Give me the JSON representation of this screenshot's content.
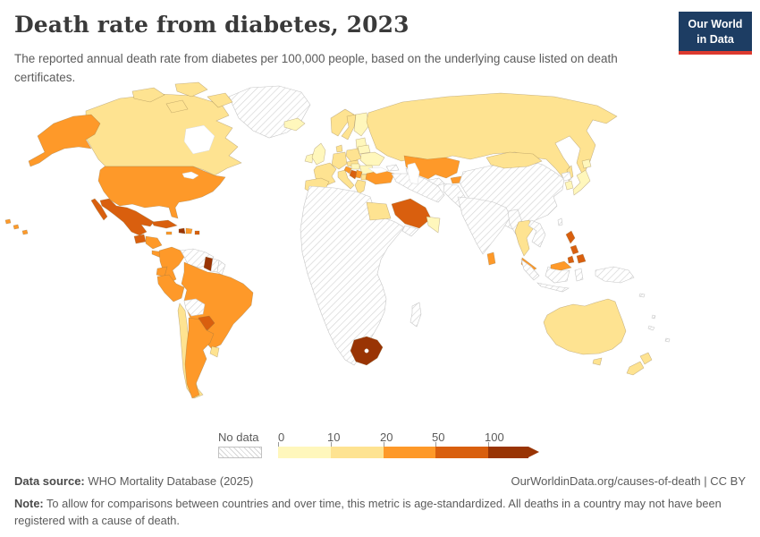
{
  "header": {
    "title": "Death rate from diabetes, 2023",
    "subtitle": "The reported annual death rate from diabetes per 100,000 people, based on the underlying cause listed on death certificates.",
    "logo": {
      "line1": "Our World",
      "line2": "in Data",
      "bg_color": "#1d3d63",
      "accent_color": "#dc3a2f"
    }
  },
  "legend": {
    "no_data_label": "No data",
    "ticks": [
      "0",
      "10",
      "20",
      "50",
      "100"
    ]
  },
  "footer": {
    "source_label": "Data source:",
    "source_rest": " WHO Mortality Database (2025)",
    "credit": "OurWorldinData.org/causes-of-death | CC BY",
    "note_label": "Note:",
    "note_rest": " To allow for comparisons between countries and over time, this metric is age-standardized. All deaths in a country may not have been registered with a cause of death."
  },
  "chart_data": {
    "type": "choropleth_map",
    "title": "Death rate from diabetes, 2023",
    "subtitle": "The reported annual death rate from diabetes per 100,000 people, based on the underlying cause listed on death certificates.",
    "unit": "deaths per 100,000 people",
    "year": 2023,
    "source": "WHO Mortality Database (2025)",
    "legend_position": "bottom",
    "legend_ticks": [
      0,
      10,
      20,
      50,
      100
    ],
    "color_scale": {
      "bins": [
        {
          "range": "0-10",
          "color": "#fff7bc"
        },
        {
          "range": "10-20",
          "color": "#fee391"
        },
        {
          "range": "20-50",
          "color": "#fe9929"
        },
        {
          "range": "50-100",
          "color": "#d95f0e"
        },
        {
          "range": "100+",
          "color": "#993404"
        }
      ],
      "no_data_style": "white with gray diagonal hatching"
    },
    "countries_by_range": {
      "0-10": [
        "Iceland",
        "Ireland",
        "United Kingdom",
        "Finland",
        "Baltic states",
        "Belarus",
        "Ukraine",
        "Romania",
        "Hungary",
        "Japan",
        "South Korea",
        "Oman"
      ],
      "10-20": [
        "Canada",
        "Chile",
        "Uruguay",
        "Norway",
        "Sweden",
        "Denmark",
        "Germany",
        "France",
        "Spain",
        "Portugal",
        "Italy",
        "Poland",
        "Czechia",
        "Slovakia",
        "Bulgaria",
        "Greece",
        "Russia",
        "Mongolia",
        "Egypt",
        "Thailand",
        "Australia",
        "New Zealand"
      ],
      "20-50": [
        "United States",
        "Honduras",
        "Nicaragua",
        "Costa Rica",
        "Panama",
        "Jamaica",
        "Dominican Republic",
        "Colombia",
        "Ecuador",
        "Peru",
        "Brazil",
        "Argentina",
        "Croatia",
        "Serbia",
        "Turkey",
        "Kazakhstan",
        "Kyrgyzstan",
        "Sri Lanka",
        "Malaysia"
      ],
      "50-100": [
        "Mexico",
        "Guatemala",
        "Cuba",
        "Puerto Rico",
        "Paraguay",
        "Bosnia and Herzegovina",
        "Saudi Arabia",
        "Philippines"
      ],
      "100+": [
        "Haiti",
        "Guyana",
        "South Africa"
      ],
      "no_data": [
        "Greenland",
        "Venezuela",
        "Suriname",
        "French Guiana",
        "Bolivia",
        "most of Africa",
        "Madagascar",
        "Iran",
        "Iraq",
        "Syria",
        "Yemen",
        "Afghanistan",
        "Pakistan",
        "Uzbekistan",
        "Turkmenistan",
        "China",
        "India",
        "Myanmar",
        "Vietnam",
        "Laos",
        "Cambodia",
        "North Korea",
        "Taiwan",
        "Indonesia",
        "Papua New Guinea"
      ]
    }
  },
  "map": {
    "regions": [
      {
        "id": "greenland",
        "name": "Greenland",
        "bucket": "no-data"
      },
      {
        "id": "canada",
        "name": "Canada",
        "bucket": "10-20"
      },
      {
        "id": "arctic-islands",
        "name": "Canadian Arctic islands",
        "bucket": "10-20"
      },
      {
        "id": "alaska",
        "name": "United States (Alaska)",
        "bucket": "20-50"
      },
      {
        "id": "usa",
        "name": "United States",
        "bucket": "20-50"
      },
      {
        "id": "hawaii",
        "name": "United States (Hawaii)",
        "bucket": "20-50"
      },
      {
        "id": "mexico",
        "name": "Mexico",
        "bucket": "50-100"
      },
      {
        "id": "baja",
        "name": "Mexico (Baja)",
        "bucket": "50-100"
      },
      {
        "id": "guatemala",
        "name": "Guatemala",
        "bucket": "50-100"
      },
      {
        "id": "honduras-nicaragua",
        "name": "Honduras / Nicaragua",
        "bucket": "20-50"
      },
      {
        "id": "costa-rica-panama",
        "name": "Costa Rica / Panama",
        "bucket": "20-50"
      },
      {
        "id": "cuba",
        "name": "Cuba",
        "bucket": "50-100"
      },
      {
        "id": "jamaica",
        "name": "Jamaica",
        "bucket": "20-50"
      },
      {
        "id": "haiti",
        "name": "Haiti",
        "bucket": "100+"
      },
      {
        "id": "dominican-republic",
        "name": "Dominican Republic",
        "bucket": "20-50"
      },
      {
        "id": "puerto-rico",
        "name": "Puerto Rico",
        "bucket": "50-100"
      },
      {
        "id": "colombia",
        "name": "Colombia",
        "bucket": "20-50"
      },
      {
        "id": "venezuela",
        "name": "Venezuela",
        "bucket": "no-data"
      },
      {
        "id": "guyana",
        "name": "Guyana",
        "bucket": "100+"
      },
      {
        "id": "suriname",
        "name": "Suriname",
        "bucket": "no-data"
      },
      {
        "id": "french-guiana",
        "name": "French Guiana",
        "bucket": "no-data"
      },
      {
        "id": "ecuador",
        "name": "Ecuador",
        "bucket": "20-50"
      },
      {
        "id": "peru",
        "name": "Peru",
        "bucket": "20-50"
      },
      {
        "id": "brazil",
        "name": "Brazil",
        "bucket": "20-50"
      },
      {
        "id": "bolivia",
        "name": "Bolivia",
        "bucket": "no-data"
      },
      {
        "id": "paraguay",
        "name": "Paraguay",
        "bucket": "50-100"
      },
      {
        "id": "chile",
        "name": "Chile",
        "bucket": "10-20"
      },
      {
        "id": "argentina",
        "name": "Argentina",
        "bucket": "20-50"
      },
      {
        "id": "uruguay",
        "name": "Uruguay",
        "bucket": "10-20"
      },
      {
        "id": "iceland",
        "name": "Iceland",
        "bucket": "0-10"
      },
      {
        "id": "ireland",
        "name": "Ireland",
        "bucket": "0-10"
      },
      {
        "id": "uk",
        "name": "United Kingdom",
        "bucket": "0-10"
      },
      {
        "id": "norway",
        "name": "Norway",
        "bucket": "10-20"
      },
      {
        "id": "sweden",
        "name": "Sweden",
        "bucket": "10-20"
      },
      {
        "id": "finland",
        "name": "Finland",
        "bucket": "0-10"
      },
      {
        "id": "baltics",
        "name": "Baltic states",
        "bucket": "0-10"
      },
      {
        "id": "denmark",
        "name": "Denmark",
        "bucket": "10-20"
      },
      {
        "id": "germany",
        "name": "Germany",
        "bucket": "10-20"
      },
      {
        "id": "france",
        "name": "France",
        "bucket": "10-20"
      },
      {
        "id": "spain",
        "name": "Spain",
        "bucket": "10-20"
      },
      {
        "id": "italy",
        "name": "Italy",
        "bucket": "10-20"
      },
      {
        "id": "sicily",
        "name": "Italy (Sicily)",
        "bucket": "10-20"
      },
      {
        "id": "poland",
        "name": "Poland",
        "bucket": "10-20"
      },
      {
        "id": "czech-slovakia",
        "name": "Czechia / Slovakia",
        "bucket": "10-20"
      },
      {
        "id": "ukraine",
        "name": "Ukraine",
        "bucket": "0-10"
      },
      {
        "id": "belarus",
        "name": "Belarus",
        "bucket": "0-10"
      },
      {
        "id": "romania",
        "name": "Romania",
        "bucket": "0-10"
      },
      {
        "id": "hungary",
        "name": "Hungary",
        "bucket": "0-10"
      },
      {
        "id": "croatia",
        "name": "Croatia",
        "bucket": "20-50"
      },
      {
        "id": "bosnia",
        "name": "Bosnia and Herzegovina",
        "bucket": "50-100"
      },
      {
        "id": "serbia",
        "name": "Serbia",
        "bucket": "20-50"
      },
      {
        "id": "bulgaria",
        "name": "Bulgaria",
        "bucket": "10-20"
      },
      {
        "id": "greece",
        "name": "Greece",
        "bucket": "10-20"
      },
      {
        "id": "russia",
        "name": "Russia",
        "bucket": "10-20"
      },
      {
        "id": "sakhalin",
        "name": "Russia (Sakhalin)",
        "bucket": "10-20"
      },
      {
        "id": "kazakhstan",
        "name": "Kazakhstan",
        "bucket": "20-50"
      },
      {
        "id": "kyrgyzstan",
        "name": "Kyrgyzstan",
        "bucket": "20-50"
      },
      {
        "id": "uzbekistan-turkmenistan",
        "name": "Uzbekistan / Turkmenistan",
        "bucket": "no-data"
      },
      {
        "id": "caucasus",
        "name": "Caucasus",
        "bucket": "no-data"
      },
      {
        "id": "turkey",
        "name": "Turkey",
        "bucket": "20-50"
      },
      {
        "id": "middle-east",
        "name": "Iran / Iraq / Syria",
        "bucket": "no-data"
      },
      {
        "id": "afghanistan-pakistan",
        "name": "Afghanistan / Pakistan",
        "bucket": "no-data"
      },
      {
        "id": "saudi-arabia",
        "name": "Saudi Arabia",
        "bucket": "50-100"
      },
      {
        "id": "oman",
        "name": "Oman / UAE",
        "bucket": "0-10"
      },
      {
        "id": "yemen",
        "name": "Yemen",
        "bucket": "no-data"
      },
      {
        "id": "africa",
        "name": "Africa (most countries)",
        "bucket": "no-data"
      },
      {
        "id": "egypt",
        "name": "Egypt",
        "bucket": "10-20"
      },
      {
        "id": "south-africa",
        "name": "South Africa",
        "bucket": "100+"
      },
      {
        "id": "madagascar",
        "name": "Madagascar",
        "bucket": "no-data"
      },
      {
        "id": "china",
        "name": "China",
        "bucket": "no-data"
      },
      {
        "id": "mongolia",
        "name": "Mongolia",
        "bucket": "10-20"
      },
      {
        "id": "india",
        "name": "India",
        "bucket": "no-data"
      },
      {
        "id": "myanmar",
        "name": "Myanmar",
        "bucket": "no-data"
      },
      {
        "id": "thailand",
        "name": "Thailand",
        "bucket": "10-20"
      },
      {
        "id": "indochina",
        "name": "Vietnam / Laos / Cambodia",
        "bucket": "no-data"
      },
      {
        "id": "malaysia-peninsula",
        "name": "Malaysia",
        "bucket": "20-50"
      },
      {
        "id": "sri-lanka",
        "name": "Sri Lanka",
        "bucket": "20-50"
      },
      {
        "id": "japan-hokkaido",
        "name": "Japan (Hokkaido)",
        "bucket": "0-10"
      },
      {
        "id": "japan-honshu",
        "name": "Japan",
        "bucket": "0-10"
      },
      {
        "id": "south-korea",
        "name": "South Korea",
        "bucket": "0-10"
      },
      {
        "id": "north-korea",
        "name": "North Korea",
        "bucket": "no-data"
      },
      {
        "id": "taiwan",
        "name": "Taiwan",
        "bucket": "no-data"
      },
      {
        "id": "philippines",
        "name": "Philippines",
        "bucket": "50-100"
      },
      {
        "id": "sumatra",
        "name": "Indonesia (Sumatra)",
        "bucket": "no-data"
      },
      {
        "id": "java",
        "name": "Indonesia (Java)",
        "bucket": "no-data"
      },
      {
        "id": "borneo",
        "name": "Indonesia (Borneo)",
        "bucket": "no-data"
      },
      {
        "id": "malaysia-borneo",
        "name": "Malaysia (Borneo)",
        "bucket": "20-50"
      },
      {
        "id": "sulawesi",
        "name": "Indonesia (Sulawesi)",
        "bucket": "no-data"
      },
      {
        "id": "new-guinea",
        "name": "Papua New Guinea",
        "bucket": "no-data"
      },
      {
        "id": "australia",
        "name": "Australia",
        "bucket": "10-20"
      },
      {
        "id": "tasmania",
        "name": "Australia (Tasmania)",
        "bucket": "10-20"
      },
      {
        "id": "nz-north",
        "name": "New Zealand (North Island)",
        "bucket": "10-20"
      },
      {
        "id": "nz-south",
        "name": "New Zealand (South Island)",
        "bucket": "10-20"
      },
      {
        "id": "fiji",
        "name": "Fiji",
        "bucket": "no-data"
      },
      {
        "id": "solomon-islands",
        "name": "Solomon Islands",
        "bucket": "no-data"
      },
      {
        "id": "vanuatu",
        "name": "Vanuatu",
        "bucket": "no-data"
      },
      {
        "id": "new-caledonia",
        "name": "New Caledonia",
        "bucket": "no-data"
      }
    ]
  }
}
